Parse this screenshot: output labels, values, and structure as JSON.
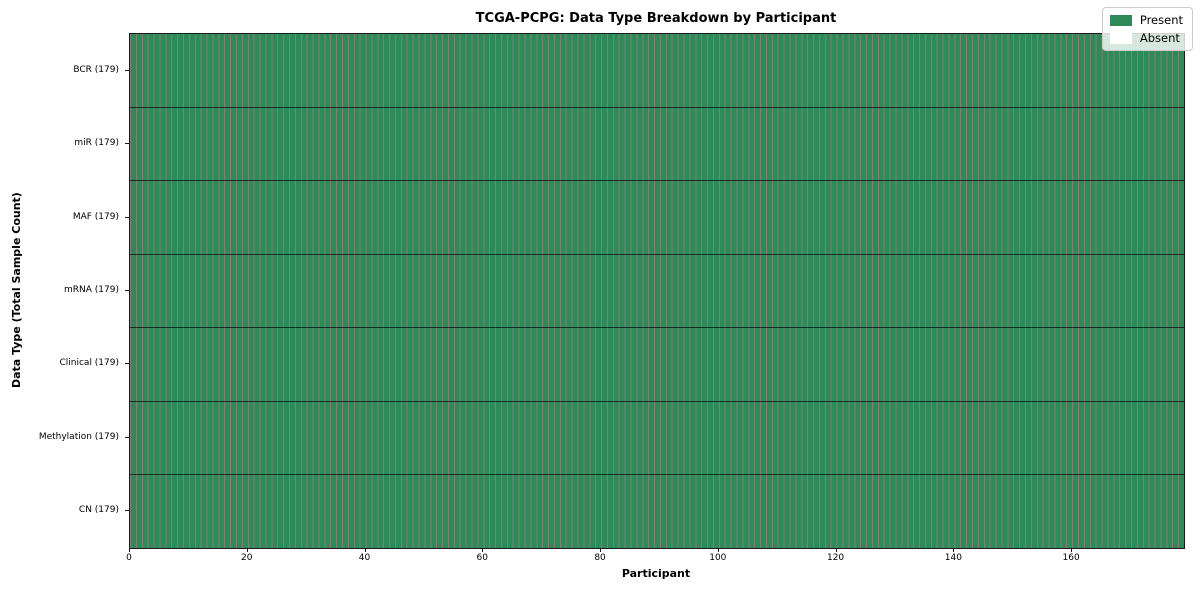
{
  "chart_data": {
    "type": "heatmap",
    "title": "TCGA-PCPG: Data Type Breakdown by Participant",
    "xlabel": "Participant",
    "ylabel": "Data Type (Total Sample Count)",
    "n_participants": 179,
    "xlim": [
      0,
      179
    ],
    "x_ticks": [
      0,
      20,
      40,
      60,
      80,
      100,
      120,
      140,
      160
    ],
    "rows": [
      {
        "label": "BCR (179)",
        "data_type": "BCR",
        "total_sample_count": 179,
        "present_count": 179,
        "absent_count": 0
      },
      {
        "label": "miR (179)",
        "data_type": "miR",
        "total_sample_count": 179,
        "present_count": 179,
        "absent_count": 0
      },
      {
        "label": "MAF (179)",
        "data_type": "MAF",
        "total_sample_count": 179,
        "present_count": 179,
        "absent_count": 0
      },
      {
        "label": "mRNA (179)",
        "data_type": "mRNA",
        "total_sample_count": 179,
        "present_count": 179,
        "absent_count": 0
      },
      {
        "label": "Clinical (179)",
        "data_type": "Clinical",
        "total_sample_count": 179,
        "present_count": 179,
        "absent_count": 0
      },
      {
        "label": "Methylation (179)",
        "data_type": "Methylation",
        "total_sample_count": 179,
        "present_count": 179,
        "absent_count": 0
      },
      {
        "label": "CN (179)",
        "data_type": "CN",
        "total_sample_count": 179,
        "present_count": 179,
        "absent_count": 0
      }
    ],
    "legend": {
      "position": "upper right",
      "items": [
        {
          "label": "Present",
          "color": "#2E8B57"
        },
        {
          "label": "Absent",
          "color": "#FFFFFF"
        }
      ]
    },
    "colors": {
      "present": "#2E8B57",
      "absent": "#FFFFFF",
      "cell_edge": "rgba(0,0,0,0.5)",
      "row_separator": "rgba(0,0,0,0.65)"
    },
    "grid": false
  }
}
